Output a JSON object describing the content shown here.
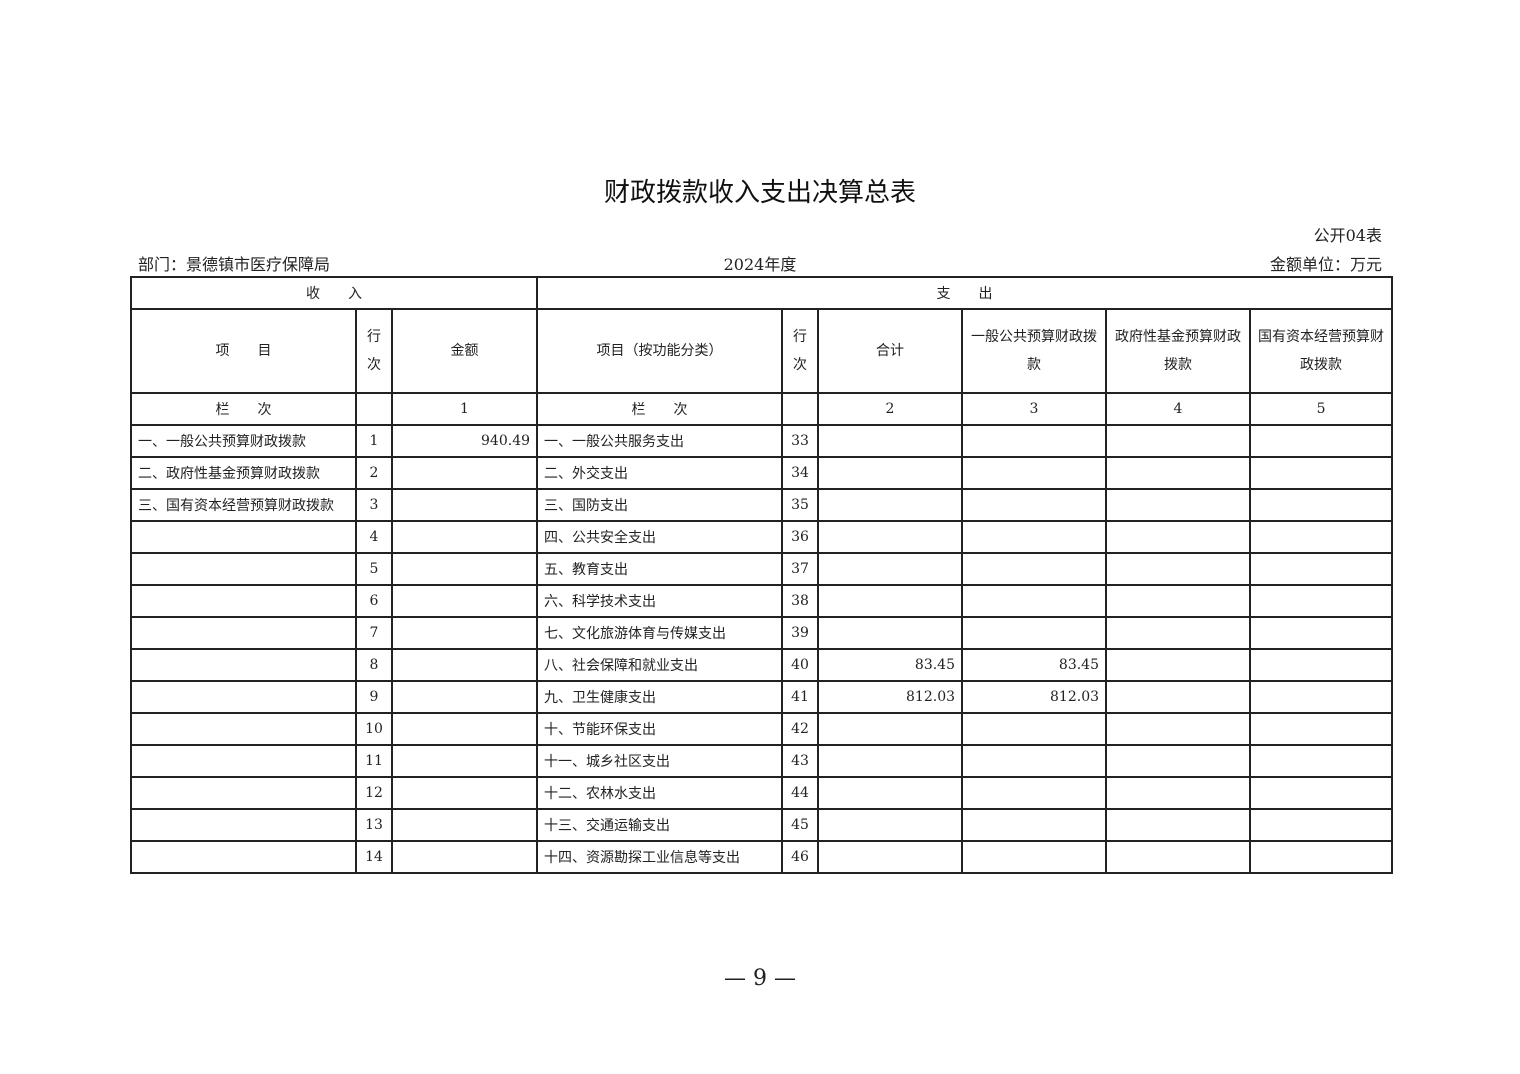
{
  "title": "财政拨款收入支出决算总表",
  "form_code": "公开04表",
  "department": "部门：景德镇市医疗保障局",
  "year": "2024年度",
  "unit": "金额单位：万元",
  "sections": {
    "income": "收　　入",
    "expense": "支　　出"
  },
  "headers": {
    "income_item": "项　　目",
    "income_row": "行次",
    "income_amount": "金额",
    "expense_item": "项目（按功能分类）",
    "expense_row": "行次",
    "total": "合计",
    "general_budget": "一般公共预算财政拨款",
    "gov_fund": "政府性基金预算财政拨款",
    "state_capital": "国有资本经营预算财政拨款"
  },
  "column_index": {
    "income_label": "栏　　次",
    "income_amount": "1",
    "expense_label": "栏　　次",
    "total": "2",
    "general_budget": "3",
    "gov_fund": "4",
    "state_capital": "5"
  },
  "rows": [
    {
      "income_item": "一、一般公共预算财政拨款",
      "income_row": "1",
      "income_amount": "940.49",
      "expense_item": "一、一般公共服务支出",
      "expense_row": "33",
      "total": "",
      "general_budget": "",
      "gov_fund": "",
      "state_capital": ""
    },
    {
      "income_item": "二、政府性基金预算财政拨款",
      "income_row": "2",
      "income_amount": "",
      "expense_item": "二、外交支出",
      "expense_row": "34",
      "total": "",
      "general_budget": "",
      "gov_fund": "",
      "state_capital": ""
    },
    {
      "income_item": "三、国有资本经营预算财政拨款",
      "income_row": "3",
      "income_amount": "",
      "expense_item": "三、国防支出",
      "expense_row": "35",
      "total": "",
      "general_budget": "",
      "gov_fund": "",
      "state_capital": ""
    },
    {
      "income_item": "",
      "income_row": "4",
      "income_amount": "",
      "expense_item": "四、公共安全支出",
      "expense_row": "36",
      "total": "",
      "general_budget": "",
      "gov_fund": "",
      "state_capital": ""
    },
    {
      "income_item": "",
      "income_row": "5",
      "income_amount": "",
      "expense_item": "五、教育支出",
      "expense_row": "37",
      "total": "",
      "general_budget": "",
      "gov_fund": "",
      "state_capital": ""
    },
    {
      "income_item": "",
      "income_row": "6",
      "income_amount": "",
      "expense_item": "六、科学技术支出",
      "expense_row": "38",
      "total": "",
      "general_budget": "",
      "gov_fund": "",
      "state_capital": ""
    },
    {
      "income_item": "",
      "income_row": "7",
      "income_amount": "",
      "expense_item": "七、文化旅游体育与传媒支出",
      "expense_row": "39",
      "total": "",
      "general_budget": "",
      "gov_fund": "",
      "state_capital": ""
    },
    {
      "income_item": "",
      "income_row": "8",
      "income_amount": "",
      "expense_item": "八、社会保障和就业支出",
      "expense_row": "40",
      "total": "83.45",
      "general_budget": "83.45",
      "gov_fund": "",
      "state_capital": ""
    },
    {
      "income_item": "",
      "income_row": "9",
      "income_amount": "",
      "expense_item": "九、卫生健康支出",
      "expense_row": "41",
      "total": "812.03",
      "general_budget": "812.03",
      "gov_fund": "",
      "state_capital": ""
    },
    {
      "income_item": "",
      "income_row": "10",
      "income_amount": "",
      "expense_item": "十、节能环保支出",
      "expense_row": "42",
      "total": "",
      "general_budget": "",
      "gov_fund": "",
      "state_capital": ""
    },
    {
      "income_item": "",
      "income_row": "11",
      "income_amount": "",
      "expense_item": "十一、城乡社区支出",
      "expense_row": "43",
      "total": "",
      "general_budget": "",
      "gov_fund": "",
      "state_capital": ""
    },
    {
      "income_item": "",
      "income_row": "12",
      "income_amount": "",
      "expense_item": "十二、农林水支出",
      "expense_row": "44",
      "total": "",
      "general_budget": "",
      "gov_fund": "",
      "state_capital": ""
    },
    {
      "income_item": "",
      "income_row": "13",
      "income_amount": "",
      "expense_item": "十三、交通运输支出",
      "expense_row": "45",
      "total": "",
      "general_budget": "",
      "gov_fund": "",
      "state_capital": ""
    },
    {
      "income_item": "",
      "income_row": "14",
      "income_amount": "",
      "expense_item": "十四、资源勘探工业信息等支出",
      "expense_row": "46",
      "total": "",
      "general_budget": "",
      "gov_fund": "",
      "state_capital": ""
    }
  ],
  "page_number": "— 9 —"
}
